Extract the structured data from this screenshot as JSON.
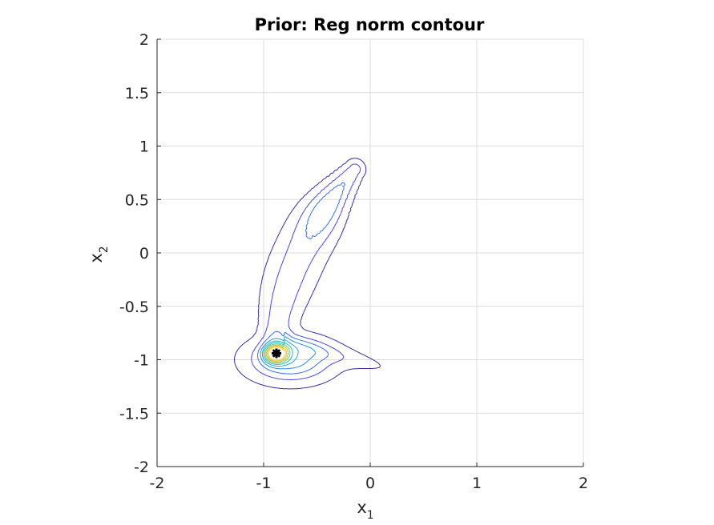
{
  "chart_data": {
    "type": "contour",
    "title": "Prior: Reg norm contour",
    "xlabel": {
      "base": "x",
      "sub": "1"
    },
    "ylabel": {
      "base": "x",
      "sub": "2"
    },
    "xlim": [
      -2,
      2
    ],
    "ylim": [
      -2,
      2
    ],
    "xticks": [
      -2,
      -1,
      0,
      1,
      2
    ],
    "yticks": [
      -2,
      -1.5,
      -1,
      -0.5,
      0,
      0.5,
      1,
      1.5,
      2
    ],
    "xtick_labels": [
      "-2",
      "-1",
      "0",
      "1",
      "2"
    ],
    "ytick_labels": [
      "-2",
      "-1.5",
      "-1",
      "-0.5",
      "0",
      "0.5",
      "1",
      "1.5",
      "2"
    ],
    "grid": true,
    "colormap": [
      "#3e26a8",
      "#4743f0",
      "#2f6ffb",
      "#1d91e3",
      "#18adcf",
      "#22c1a6",
      "#6ccc72",
      "#b7c43a",
      "#e7ba2c",
      "#f9d329"
    ],
    "contour_levels": 10,
    "marker": {
      "x": -0.88,
      "y": -0.94,
      "symbol": "*",
      "color": "#000000"
    }
  }
}
